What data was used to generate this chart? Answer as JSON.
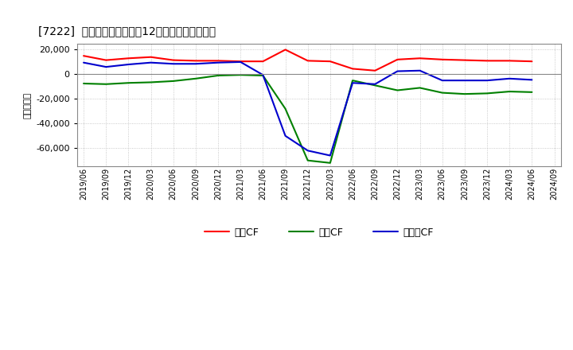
{
  "title": "[7222]  キャッシュフローの12か月移動合計の推移",
  "ylabel": "（百万円）",
  "ylim": [
    -75000,
    25000
  ],
  "yticks": [
    -60000,
    -40000,
    -20000,
    0,
    20000
  ],
  "background_color": "#ffffff",
  "grid_color": "#bbbbbb",
  "x_labels": [
    "2019/06",
    "2019/09",
    "2019/12",
    "2020/03",
    "2020/06",
    "2020/09",
    "2020/12",
    "2021/03",
    "2021/06",
    "2021/09",
    "2021/12",
    "2022/03",
    "2022/06",
    "2022/09",
    "2022/12",
    "2023/03",
    "2023/06",
    "2023/09",
    "2023/12",
    "2024/03",
    "2024/06",
    "2024/09"
  ],
  "operating_cf": [
    15000,
    11500,
    13000,
    14000,
    11500,
    11000,
    11000,
    10500,
    10500,
    20000,
    11000,
    10500,
    4500,
    3000,
    12000,
    13000,
    12000,
    11500,
    11000,
    11000,
    10500,
    null
  ],
  "investing_cf": [
    -7500,
    -8000,
    -7000,
    -6500,
    -5500,
    -3500,
    -1000,
    -500,
    -1000,
    -28000,
    -70000,
    -72000,
    -5000,
    -9000,
    -13000,
    -11000,
    -15000,
    -16000,
    -15500,
    -14000,
    -14500,
    null
  ],
  "free_cf": [
    9500,
    6000,
    8000,
    9500,
    8500,
    8500,
    9500,
    10000,
    -500,
    -50000,
    -62000,
    -66000,
    -7000,
    -8000,
    2500,
    3000,
    -5000,
    -5000,
    -5000,
    -3500,
    -4500,
    null
  ],
  "line_colors": {
    "operating": "#ff0000",
    "investing": "#008000",
    "free": "#0000cd"
  },
  "legend_labels": [
    "営業CF",
    "投資CF",
    "フリーCF"
  ]
}
